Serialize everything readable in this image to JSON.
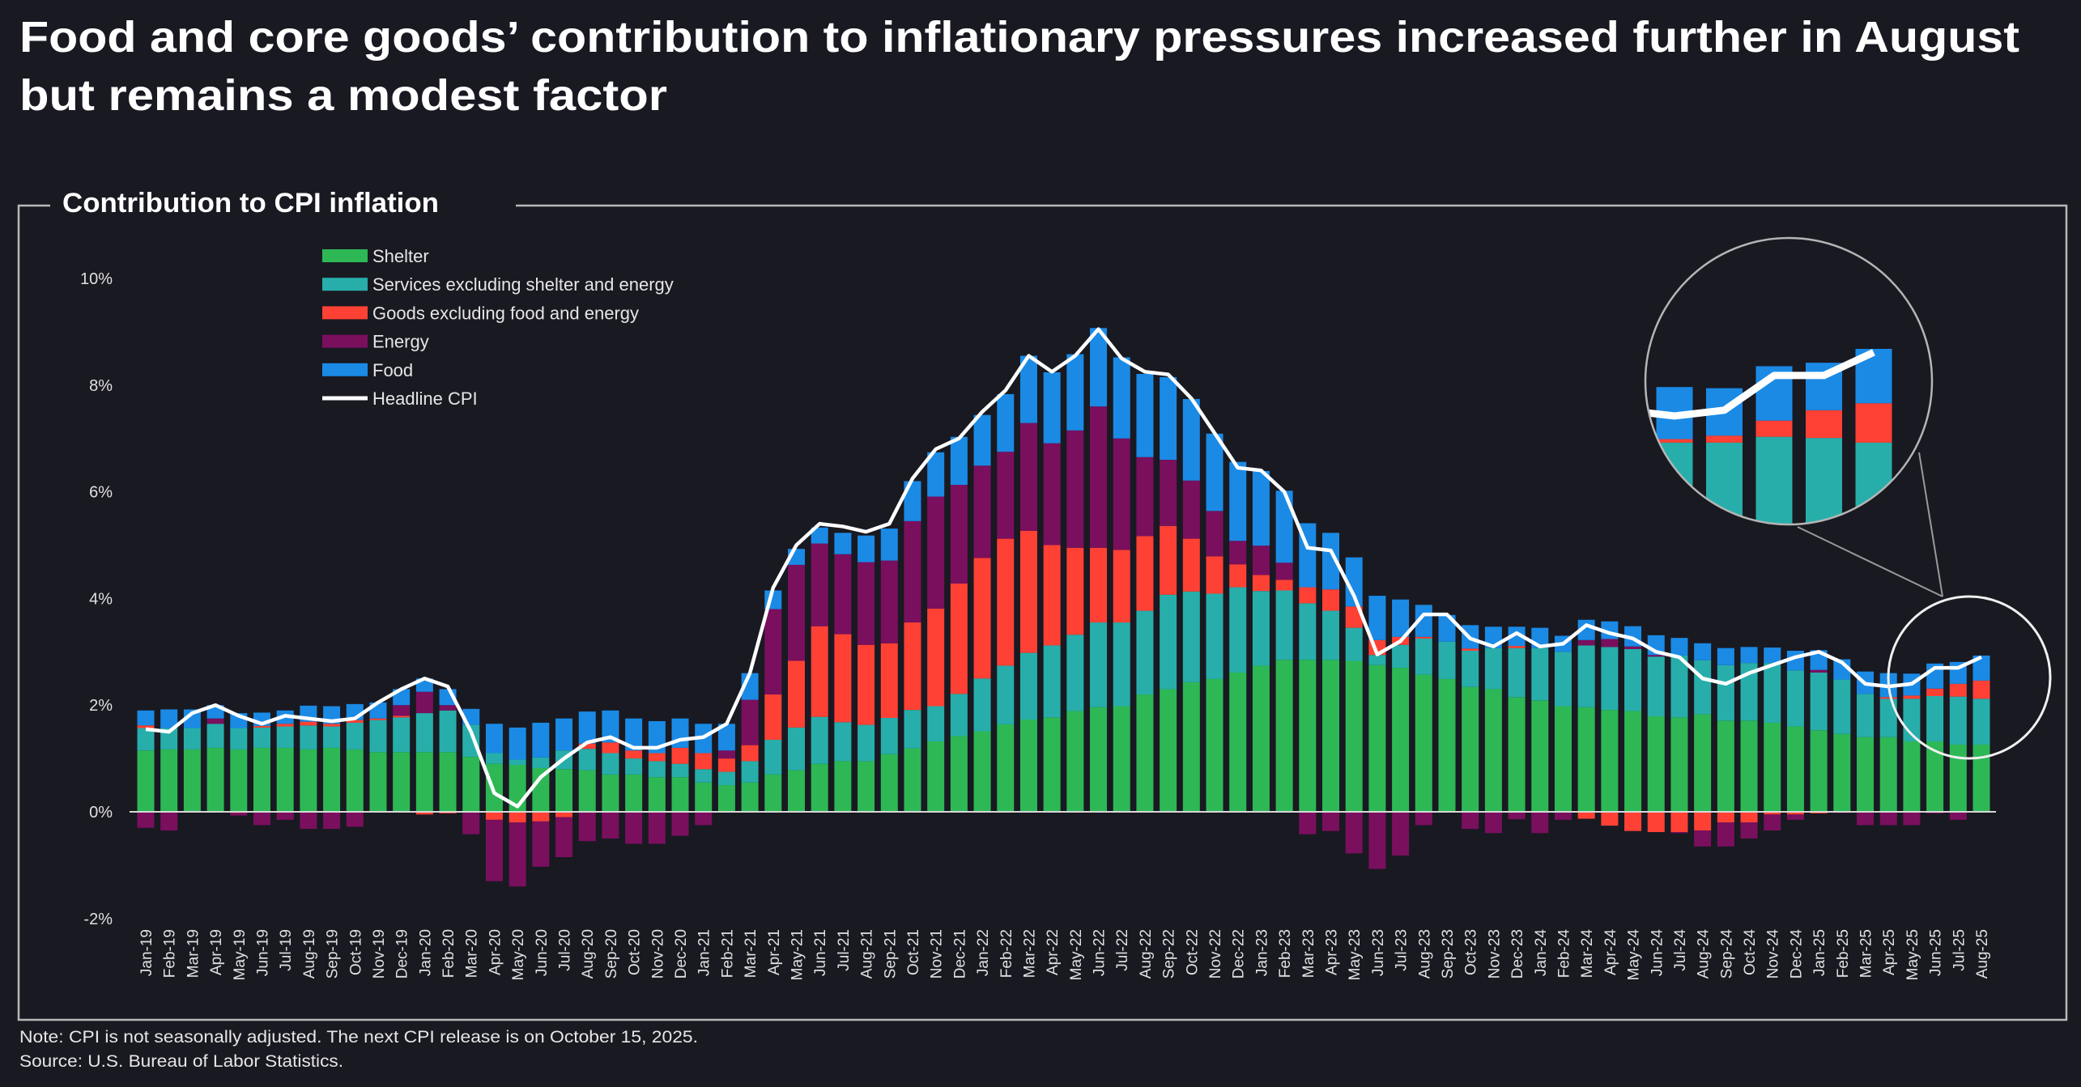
{
  "title_line1": "Food and core goods’ contribution to inflationary pressures increased further in August",
  "title_line2": "but remains a modest factor",
  "note": "Note: CPI is not seasonally adjusted. The next CPI release is on October 15, 2025.",
  "source": "Source: U.S. Bureau of Labor Statistics.",
  "chart_data": {
    "type": "bar",
    "stacked": true,
    "title": "Contribution to CPI inflation",
    "xlabel": "",
    "ylabel": "",
    "ylim": [
      -2,
      10
    ],
    "yticks": [
      "-2%",
      "0%",
      "2%",
      "4%",
      "6%",
      "8%",
      "10%"
    ],
    "ytick_values": [
      -2,
      0,
      2,
      4,
      6,
      8,
      10
    ],
    "grid": false,
    "legend_placement": "top-left",
    "categories": [
      "Jan-19",
      "Feb-19",
      "Mar-19",
      "Apr-19",
      "May-19",
      "Jun-19",
      "Jul-19",
      "Aug-19",
      "Sep-19",
      "Oct-19",
      "Nov-19",
      "Dec-19",
      "Jan-20",
      "Feb-20",
      "Mar-20",
      "Apr-20",
      "May-20",
      "Jun-20",
      "Jul-20",
      "Aug-20",
      "Sep-20",
      "Oct-20",
      "Nov-20",
      "Dec-20",
      "Jan-21",
      "Feb-21",
      "Mar-21",
      "Apr-21",
      "May-21",
      "Jun-21",
      "Jul-21",
      "Aug-21",
      "Sep-21",
      "Oct-21",
      "Nov-21",
      "Dec-21",
      "Jan-22",
      "Feb-22",
      "Mar-22",
      "Apr-22",
      "May-22",
      "Jun-22",
      "Jul-22",
      "Aug-22",
      "Sep-22",
      "Oct-22",
      "Nov-22",
      "Dec-22",
      "Jan-23",
      "Feb-23",
      "Mar-23",
      "Apr-23",
      "May-23",
      "Jun-23",
      "Jul-23",
      "Aug-23",
      "Sep-23",
      "Oct-23",
      "Nov-23",
      "Dec-23",
      "Jan-24",
      "Feb-24",
      "Mar-24",
      "Apr-24",
      "May-24",
      "Jun-24",
      "Jul-24",
      "Aug-24",
      "Sep-24",
      "Oct-24",
      "Nov-24",
      "Dec-24",
      "Jan-25",
      "Feb-25",
      "Mar-25",
      "Apr-25",
      "May-25",
      "Jun-25",
      "Jul-25",
      "Aug-25"
    ],
    "series": [
      {
        "name": "Shelter",
        "color": "#2db855",
        "values": [
          1.15,
          1.17,
          1.17,
          1.2,
          1.17,
          1.2,
          1.2,
          1.17,
          1.2,
          1.17,
          1.12,
          1.12,
          1.12,
          1.12,
          1.03,
          0.9,
          0.88,
          0.82,
          0.8,
          0.78,
          0.7,
          0.7,
          0.65,
          0.65,
          0.55,
          0.5,
          0.55,
          0.7,
          0.78,
          0.9,
          0.95,
          0.95,
          1.08,
          1.19,
          1.32,
          1.42,
          1.51,
          1.64,
          1.73,
          1.77,
          1.89,
          1.96,
          1.98,
          2.2,
          2.3,
          2.43,
          2.49,
          2.61,
          2.74,
          2.85,
          2.85,
          2.85,
          2.83,
          2.75,
          2.7,
          2.57,
          2.49,
          2.34,
          2.3,
          2.15,
          2.09,
          1.98,
          1.96,
          1.91,
          1.89,
          1.79,
          1.77,
          1.83,
          1.71,
          1.71,
          1.67,
          1.6,
          1.53,
          1.46,
          1.4,
          1.4,
          1.32,
          1.32,
          1.26,
          1.26
        ]
      },
      {
        "name": "Services excluding shelter and energy",
        "color": "#27aeab",
        "values": [
          0.42,
          0.4,
          0.4,
          0.45,
          0.4,
          0.38,
          0.4,
          0.45,
          0.4,
          0.5,
          0.6,
          0.65,
          0.73,
          0.78,
          0.6,
          0.2,
          0.1,
          0.2,
          0.35,
          0.4,
          0.4,
          0.3,
          0.3,
          0.25,
          0.25,
          0.25,
          0.4,
          0.65,
          0.8,
          0.88,
          0.73,
          0.68,
          0.68,
          0.72,
          0.66,
          0.79,
          0.99,
          1.1,
          1.25,
          1.35,
          1.43,
          1.59,
          1.57,
          1.57,
          1.77,
          1.7,
          1.6,
          1.6,
          1.4,
          1.3,
          1.06,
          0.92,
          0.62,
          0.19,
          0.43,
          0.68,
          0.7,
          0.68,
          0.77,
          0.92,
          0.98,
          1.02,
          1.16,
          1.18,
          1.16,
          1.12,
          1.16,
          1.01,
          1.04,
          1.08,
          1.12,
          1.05,
          1.08,
          1.02,
          0.81,
          0.72,
          0.8,
          0.85,
          0.9,
          0.86
        ]
      },
      {
        "name": "Goods excluding food and energy",
        "color": "#fe4134",
        "values": [
          0.05,
          0,
          0,
          0,
          -0.02,
          0.03,
          0.05,
          0.07,
          0.05,
          0.05,
          0.03,
          0.03,
          -0.05,
          -0.03,
          0,
          -0.15,
          -0.2,
          -0.18,
          -0.1,
          0.1,
          0.2,
          0.15,
          0.15,
          0.3,
          0.3,
          0.25,
          0.3,
          0.85,
          1.25,
          1.7,
          1.65,
          1.5,
          1.4,
          1.64,
          1.83,
          2.07,
          2.26,
          2.38,
          2.29,
          1.88,
          1.63,
          1.4,
          1.36,
          1.4,
          1.29,
          0.99,
          0.7,
          0.43,
          0.3,
          0.2,
          0.3,
          0.4,
          0.4,
          0.28,
          0.15,
          0.03,
          0,
          0.04,
          0,
          0.04,
          0,
          0,
          -0.13,
          -0.26,
          -0.36,
          -0.38,
          -0.38,
          -0.35,
          -0.2,
          -0.2,
          -0.05,
          -0.05,
          -0.03,
          0,
          0,
          0.03,
          0.06,
          0.14,
          0.24,
          0.34
        ]
      },
      {
        "name": "Energy",
        "color": "#7a0f5e",
        "values": [
          -0.3,
          -0.35,
          0,
          0.1,
          -0.05,
          -0.25,
          -0.15,
          -0.32,
          -0.32,
          -0.28,
          0,
          0.2,
          0.4,
          0.1,
          -0.42,
          -1.15,
          -1.2,
          -0.85,
          -0.75,
          -0.55,
          -0.5,
          -0.6,
          -0.6,
          -0.45,
          -0.25,
          0.15,
          0.85,
          1.6,
          1.8,
          1.55,
          1.5,
          1.55,
          1.55,
          1.9,
          2.1,
          1.85,
          1.73,
          1.63,
          2.02,
          1.91,
          2.2,
          2.65,
          2.09,
          1.48,
          1.24,
          1.09,
          0.85,
          0.44,
          0.55,
          0.32,
          -0.42,
          -0.36,
          -0.78,
          -1.07,
          -0.82,
          -0.25,
          0,
          -0.32,
          -0.4,
          -0.14,
          -0.4,
          -0.15,
          0.1,
          0.15,
          0.05,
          0.03,
          -0.02,
          -0.3,
          -0.45,
          -0.3,
          -0.3,
          -0.1,
          0.05,
          -0.02,
          -0.25,
          -0.25,
          -0.25,
          -0.03,
          -0.15,
          0
        ]
      },
      {
        "name": "Food",
        "color": "#1a8ae5",
        "values": [
          0.28,
          0.35,
          0.35,
          0.25,
          0.28,
          0.25,
          0.25,
          0.3,
          0.33,
          0.3,
          0.3,
          0.3,
          0.25,
          0.3,
          0.3,
          0.55,
          0.6,
          0.65,
          0.6,
          0.6,
          0.6,
          0.6,
          0.6,
          0.55,
          0.55,
          0.5,
          0.5,
          0.35,
          0.3,
          0.3,
          0.4,
          0.5,
          0.6,
          0.75,
          0.83,
          0.9,
          0.95,
          1.08,
          1.26,
          1.33,
          1.43,
          1.47,
          1.52,
          1.56,
          1.55,
          1.53,
          1.45,
          1.48,
          1.4,
          1.35,
          1.2,
          1.06,
          0.92,
          0.83,
          0.7,
          0.6,
          0.5,
          0.44,
          0.4,
          0.36,
          0.38,
          0.3,
          0.38,
          0.33,
          0.38,
          0.37,
          0.33,
          0.32,
          0.32,
          0.3,
          0.29,
          0.37,
          0.37,
          0.38,
          0.42,
          0.45,
          0.41,
          0.47,
          0.41,
          0.47
        ]
      }
    ],
    "line": {
      "name": "Headline CPI",
      "color": "#ffffff",
      "values": [
        1.55,
        1.5,
        1.85,
        2.0,
        1.8,
        1.65,
        1.8,
        1.75,
        1.7,
        1.75,
        2.05,
        2.3,
        2.5,
        2.35,
        1.5,
        0.35,
        0.1,
        0.65,
        1.0,
        1.3,
        1.4,
        1.2,
        1.2,
        1.35,
        1.4,
        1.65,
        2.6,
        4.2,
        5.0,
        5.4,
        5.35,
        5.25,
        5.4,
        6.25,
        6.8,
        7.0,
        7.5,
        7.9,
        8.55,
        8.25,
        8.55,
        9.05,
        8.5,
        8.25,
        8.2,
        7.75,
        7.1,
        6.45,
        6.4,
        6.0,
        4.95,
        4.9,
        4.05,
        2.95,
        3.2,
        3.7,
        3.7,
        3.25,
        3.1,
        3.35,
        3.1,
        3.15,
        3.5,
        3.35,
        3.25,
        3.0,
        2.9,
        2.5,
        2.4,
        2.6,
        2.75,
        2.9,
        3.0,
        2.8,
        2.4,
        2.35,
        2.4,
        2.7,
        2.7,
        2.9
      ]
    },
    "magnified_inset": {
      "categories": [
        "Apr-25",
        "May-25",
        "Jun-25",
        "Jul-25",
        "Aug-25"
      ]
    }
  }
}
